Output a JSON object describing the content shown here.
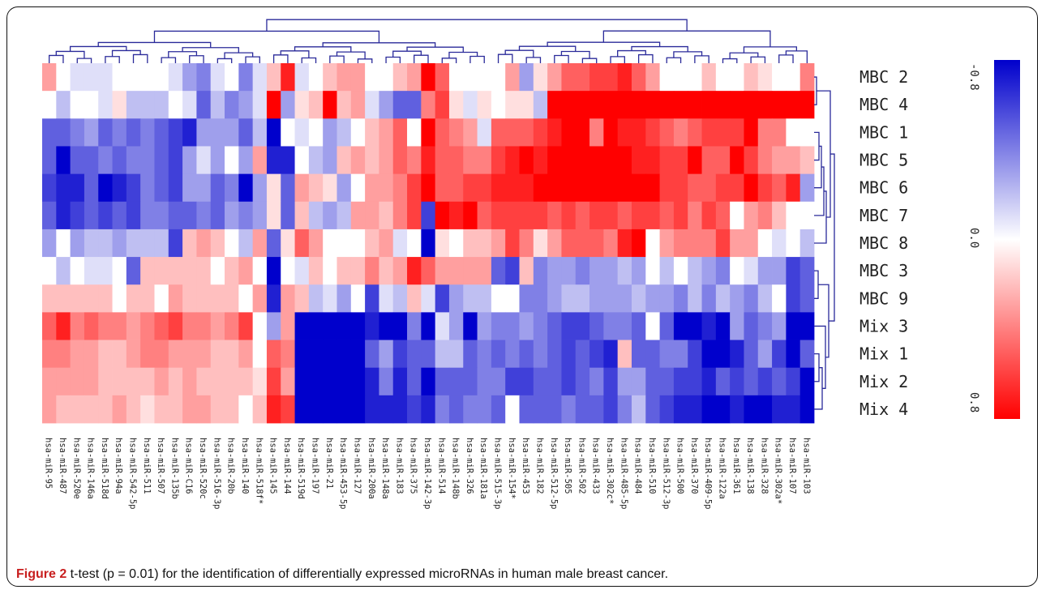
{
  "caption": {
    "label": "Figure 2",
    "text": " t-test (p = 0.01) for the identification of differentially expressed microRNAs in human male breast cancer."
  },
  "chart_data": {
    "type": "heatmap",
    "rows": [
      "MBC 2",
      "MBC 4",
      "MBC 1",
      "MBC 5",
      "MBC 6",
      "MBC 7",
      "MBC 8",
      "MBC 3",
      "MBC 9",
      "Mix 3",
      "Mix 1",
      "Mix 2",
      "Mix 4"
    ],
    "columns": [
      "hsa-miR-95",
      "hsa-miR-487",
      "hsa-miR-520e",
      "hsa-miR-146a",
      "hsa-miR-518d",
      "hsa-miR-94a",
      "hsa-miR-542-5p",
      "hsa-miR-511",
      "hsa-miR-507",
      "hsa-miR-135b",
      "hsa-miR-C16",
      "hsa-miR-520c",
      "hsa-miR-516-3p",
      "hsa-miR-20b",
      "hsa-miR-140",
      "hsa-miR-518f*",
      "hsa-miR-145",
      "hsa-miR-144",
      "hsa-miR-519d",
      "hsa-miR-197",
      "hsa-miR-21",
      "hsa-miR-453-5p",
      "hsa-miR-127",
      "hsa-miR-200a",
      "hsa-miR-148a",
      "hsa-miR-183",
      "hsa-miR-375",
      "hsa-miR-142-3p",
      "hsa-miR-514",
      "hsa-miR-148b",
      "hsa-miR-326",
      "hsa-miR-181a",
      "hsa-miR-515-3p",
      "hsa-miR-154*",
      "hsa-miR-453",
      "hsa-miR-182",
      "hsa-miR-512-5p",
      "hsa-miR-505",
      "hsa-miR-502",
      "hsa-miR-433",
      "hsa-miR-302c*",
      "hsa-miR-485-5p",
      "hsa-miR-484",
      "hsa-miR-510",
      "hsa-miR-512-3p",
      "hsa-miR-500",
      "hsa-miR-370",
      "hsa-miR-409-5p",
      "hsa-miR-122a",
      "hsa-miR-361",
      "hsa-miR-138",
      "hsa-miR-328",
      "hsa-miR-302a*",
      "hsa-miR-107",
      "hsa-miR-103"
    ],
    "colorbar": {
      "ticks": [
        "-0.8",
        "0.0",
        "0.8"
      ],
      "min": -0.8,
      "max": 0.8,
      "colors": {
        "low": "#0000cc",
        "mid": "#ffffff",
        "high": "#ff0000"
      }
    },
    "values": [
      [
        0.3,
        0,
        -0.1,
        -0.1,
        -0.1,
        0,
        0,
        0,
        0,
        -0.1,
        -0.3,
        -0.4,
        -0.1,
        0,
        -0.4,
        -0.1,
        0.2,
        0.7,
        -0.1,
        0,
        0.2,
        0.3,
        0.3,
        0,
        0,
        0.2,
        0.3,
        0.8,
        0.5,
        0,
        0,
        0,
        0,
        0.3,
        -0.3,
        0.1,
        0.3,
        0.5,
        0.5,
        0.6,
        0.6,
        0.7,
        0.5,
        0.3,
        0,
        0,
        0,
        0.2,
        0,
        0,
        0.2,
        0.1,
        0,
        0,
        0.4
      ],
      [
        0,
        -0.2,
        0,
        0,
        -0.1,
        0.1,
        -0.2,
        -0.2,
        -0.2,
        0,
        -0.1,
        -0.5,
        -0.2,
        -0.4,
        -0.3,
        -0.1,
        0.8,
        -0.3,
        0.1,
        0.2,
        0.9,
        0.2,
        0.3,
        -0.1,
        -0.3,
        -0.5,
        -0.5,
        0.4,
        0.6,
        0.1,
        -0.1,
        0.1,
        0,
        0.1,
        0.1,
        -0.2,
        0.9,
        0.9,
        0.9,
        0.9,
        0.9,
        0.9,
        0.9,
        0.9,
        0.9,
        0.9,
        0.9,
        0.9,
        0.9,
        0.9,
        0.9,
        0.9,
        0.9,
        0.9,
        0.9
      ],
      [
        -0.5,
        -0.5,
        -0.4,
        -0.3,
        -0.5,
        -0.4,
        -0.5,
        -0.4,
        -0.5,
        -0.6,
        -0.7,
        -0.3,
        -0.3,
        -0.3,
        -0.5,
        -0.2,
        -0.8,
        0,
        -0.1,
        0,
        -0.3,
        -0.2,
        0,
        0.2,
        0.3,
        0.5,
        0,
        0.8,
        0.5,
        0.4,
        0.3,
        -0.1,
        0.5,
        0.5,
        0.5,
        0.6,
        0.7,
        0.8,
        0.8,
        0.4,
        0.8,
        0.7,
        0.7,
        0.6,
        0.5,
        0.4,
        0.5,
        0.6,
        0.6,
        0.6,
        0.8,
        0.4,
        0.4,
        0,
        0
      ],
      [
        -0.5,
        -0.9,
        -0.5,
        -0.5,
        -0.4,
        -0.5,
        -0.4,
        -0.4,
        -0.5,
        -0.6,
        -0.3,
        -0.1,
        -0.3,
        0,
        -0.3,
        0.3,
        -0.7,
        -0.7,
        0,
        -0.2,
        -0.3,
        0.2,
        0.3,
        0.2,
        0.3,
        0.5,
        0.4,
        0.7,
        0.5,
        0.5,
        0.4,
        0.4,
        0.6,
        0.7,
        0.8,
        0.7,
        0.8,
        0.8,
        0.8,
        0.8,
        0.8,
        0.8,
        0.7,
        0.7,
        0.6,
        0.6,
        0.8,
        0.5,
        0.5,
        0.8,
        0.6,
        0.4,
        0.3,
        0.3,
        0.2
      ],
      [
        -0.6,
        -0.7,
        -0.7,
        -0.5,
        -0.9,
        -0.7,
        -0.6,
        -0.4,
        -0.5,
        -0.6,
        -0.3,
        -0.3,
        -0.5,
        -0.4,
        -0.8,
        -0.3,
        0.1,
        -0.5,
        0.3,
        0.2,
        0.1,
        -0.3,
        0,
        0.3,
        0.3,
        0.4,
        0.6,
        0.8,
        0.5,
        0.5,
        0.6,
        0.6,
        0.7,
        0.7,
        0.7,
        0.8,
        0.8,
        0.8,
        0.8,
        0.8,
        0.8,
        0.8,
        0.8,
        0.8,
        0.6,
        0.6,
        0.5,
        0.5,
        0.6,
        0.6,
        0.9,
        0.6,
        0.5,
        0.7,
        -0.3
      ],
      [
        -0.5,
        -0.7,
        -0.6,
        -0.5,
        -0.6,
        -0.5,
        -0.6,
        -0.4,
        -0.4,
        -0.5,
        -0.5,
        -0.4,
        -0.5,
        -0.3,
        -0.4,
        -0.3,
        0.1,
        -0.5,
        0.2,
        -0.2,
        -0.3,
        -0.2,
        0.3,
        0.3,
        0.2,
        0.4,
        0.6,
        -0.6,
        0.8,
        0.7,
        0.8,
        0.5,
        0.6,
        0.6,
        0.6,
        0.6,
        0.5,
        0.6,
        0.5,
        0.6,
        0.6,
        0.5,
        0.6,
        0.6,
        0.5,
        0.6,
        0.4,
        0.6,
        0.5,
        0,
        0.3,
        0.4,
        0.2,
        0,
        0
      ],
      [
        -0.3,
        0,
        -0.3,
        -0.2,
        -0.2,
        -0.3,
        -0.2,
        -0.2,
        -0.2,
        -0.6,
        0.2,
        0.3,
        0.2,
        0,
        -0.2,
        0.3,
        -0.5,
        0.1,
        0.5,
        0.3,
        0,
        0,
        0,
        0.2,
        0.3,
        -0.1,
        0,
        -0.9,
        0.1,
        0,
        0.2,
        0.2,
        0.3,
        0.6,
        0.4,
        0.1,
        0.3,
        0.5,
        0.5,
        0.5,
        0.4,
        0.7,
        0.8,
        0,
        0.3,
        0.4,
        0.4,
        0.4,
        0.6,
        0.3,
        0.3,
        0,
        -0.1,
        0,
        -0.2
      ],
      [
        0,
        -0.2,
        0,
        -0.1,
        -0.1,
        0,
        -0.5,
        0.2,
        0.2,
        0.2,
        0.2,
        0.2,
        0,
        0.2,
        0.3,
        0,
        -0.8,
        0,
        -0.1,
        0.2,
        0,
        0.2,
        0.2,
        0.4,
        0.2,
        0.3,
        0.7,
        0.5,
        0.3,
        0.3,
        0.3,
        0.3,
        -0.5,
        -0.6,
        0.2,
        -0.4,
        -0.3,
        -0.3,
        -0.4,
        -0.3,
        -0.3,
        -0.2,
        -0.3,
        0,
        -0.2,
        0,
        -0.2,
        -0.3,
        -0.4,
        0,
        -0.1,
        -0.3,
        -0.3,
        -0.6,
        -0.5
      ],
      [
        0.2,
        0.2,
        0.2,
        0.2,
        0.2,
        0,
        0.2,
        0.2,
        0,
        0.3,
        0.2,
        0.2,
        0.2,
        0.2,
        0,
        0.3,
        -0.7,
        0.3,
        0.2,
        -0.2,
        -0.1,
        -0.3,
        0,
        -0.6,
        -0.1,
        -0.2,
        0.2,
        -0.1,
        -0.6,
        -0.3,
        -0.2,
        -0.2,
        0,
        0,
        -0.4,
        -0.4,
        -0.3,
        -0.2,
        -0.2,
        -0.3,
        -0.3,
        -0.3,
        -0.2,
        -0.3,
        -0.3,
        -0.4,
        -0.2,
        -0.4,
        -0.2,
        -0.3,
        -0.4,
        -0.2,
        0,
        -0.6,
        -0.5
      ],
      [
        0.5,
        0.7,
        0.4,
        0.5,
        0.4,
        0.4,
        0.3,
        0.4,
        0.5,
        0.6,
        0.4,
        0.4,
        0.3,
        0.4,
        0.6,
        0,
        -0.3,
        0.3,
        -0.9,
        -0.9,
        -0.9,
        -0.9,
        -0.9,
        -0.7,
        -0.9,
        -0.9,
        -0.4,
        -0.8,
        -0.1,
        -0.3,
        -0.9,
        -0.3,
        -0.4,
        -0.4,
        -0.3,
        -0.4,
        -0.5,
        -0.6,
        -0.6,
        -0.5,
        -0.4,
        -0.4,
        -0.5,
        0,
        -0.5,
        -0.8,
        -0.8,
        -0.7,
        -0.8,
        -0.3,
        -0.5,
        -0.4,
        -0.3,
        -0.8,
        -0.8
      ],
      [
        0.4,
        0.4,
        0.3,
        0.3,
        0.2,
        0.2,
        0.3,
        0.4,
        0.4,
        0.3,
        0.3,
        0.3,
        0.2,
        0.2,
        0.3,
        0,
        0.5,
        0.4,
        -0.9,
        -0.9,
        -0.9,
        -0.9,
        -0.9,
        -0.5,
        -0.3,
        -0.6,
        -0.5,
        -0.5,
        -0.2,
        -0.2,
        -0.5,
        -0.4,
        -0.5,
        -0.4,
        -0.5,
        -0.4,
        -0.5,
        -0.6,
        -0.5,
        -0.6,
        -0.7,
        0.2,
        -0.5,
        -0.5,
        -0.4,
        -0.4,
        -0.6,
        -0.8,
        -0.9,
        -0.7,
        -0.5,
        -0.3,
        -0.6,
        -0.8,
        -0.5
      ],
      [
        0.3,
        0.3,
        0.3,
        0.3,
        0.2,
        0.2,
        0.2,
        0.2,
        0.3,
        0.2,
        0.3,
        0.2,
        0.2,
        0.2,
        0.2,
        0.1,
        0.6,
        0.3,
        -0.9,
        -0.9,
        -0.9,
        -0.9,
        -0.9,
        -0.7,
        -0.4,
        -0.7,
        -0.5,
        -0.8,
        -0.5,
        -0.5,
        -0.5,
        -0.4,
        -0.4,
        -0.6,
        -0.6,
        -0.5,
        -0.5,
        -0.6,
        -0.5,
        -0.4,
        -0.6,
        -0.3,
        -0.3,
        -0.5,
        -0.5,
        -0.6,
        -0.6,
        -0.7,
        -0.5,
        -0.6,
        -0.5,
        -0.6,
        -0.5,
        -0.6,
        -0.8
      ],
      [
        0.3,
        0.2,
        0.2,
        0.2,
        0.2,
        0.3,
        0.2,
        0.1,
        0.2,
        0.2,
        0.3,
        0.3,
        0.2,
        0.2,
        0,
        0.2,
        0.7,
        0.6,
        -0.9,
        -0.9,
        -0.9,
        -0.9,
        -0.9,
        -0.7,
        -0.7,
        -0.7,
        -0.6,
        -0.7,
        -0.4,
        -0.5,
        -0.4,
        -0.4,
        -0.5,
        0,
        -0.5,
        -0.5,
        -0.5,
        -0.4,
        -0.5,
        -0.5,
        -0.6,
        -0.4,
        -0.2,
        -0.5,
        -0.6,
        -0.7,
        -0.7,
        -0.8,
        -0.8,
        -0.7,
        -0.8,
        -0.8,
        -0.7,
        -0.7,
        -0.8
      ]
    ]
  }
}
